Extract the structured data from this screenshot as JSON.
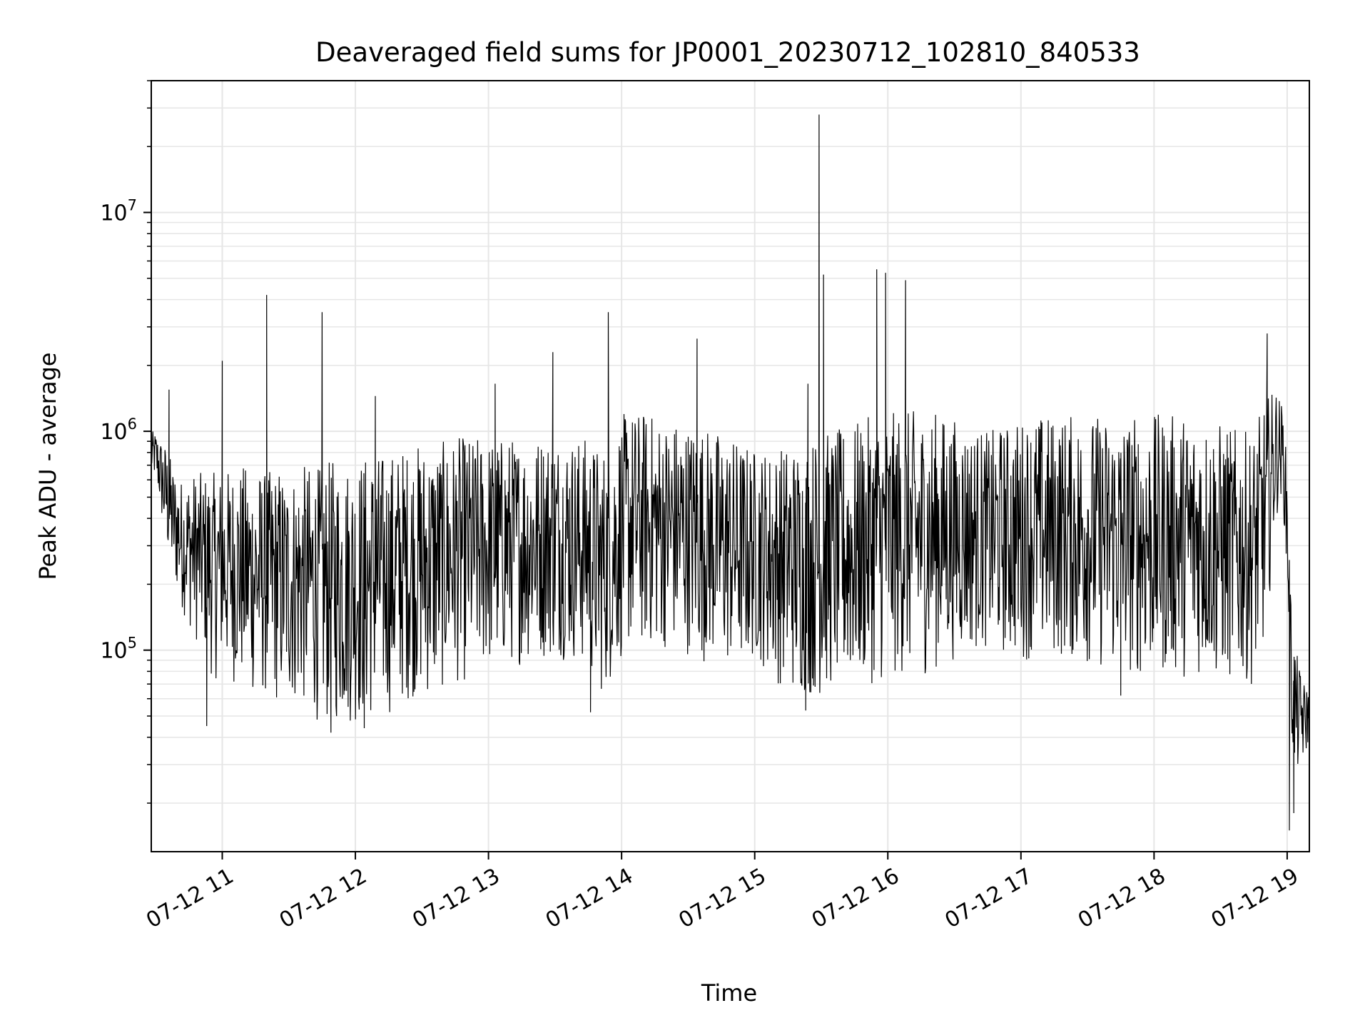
{
  "chart_data": {
    "type": "line",
    "title": "Deaveraged field sums for JP0001_20230712_102810_840533",
    "xlabel": "Time",
    "ylabel": "Peak ADU - average",
    "y_scale": "log",
    "grid": true,
    "x_range": [
      "2023-07-12 10:28",
      "2023-07-12 19:10"
    ],
    "ylim": [
      12000,
      40000000
    ],
    "x_ticks": [
      {
        "at": "2023-07-12 11:00",
        "label": "07-12 11"
      },
      {
        "at": "2023-07-12 12:00",
        "label": "07-12 12"
      },
      {
        "at": "2023-07-12 13:00",
        "label": "07-12 13"
      },
      {
        "at": "2023-07-12 14:00",
        "label": "07-12 14"
      },
      {
        "at": "2023-07-12 15:00",
        "label": "07-12 15"
      },
      {
        "at": "2023-07-12 16:00",
        "label": "07-12 16"
      },
      {
        "at": "2023-07-12 17:00",
        "label": "07-12 17"
      },
      {
        "at": "2023-07-12 18:00",
        "label": "07-12 18"
      },
      {
        "at": "2023-07-12 19:00",
        "label": "07-12 19"
      }
    ],
    "y_ticks": [
      {
        "value": 100000,
        "base": "10",
        "exp": "5"
      },
      {
        "value": 1000000,
        "base": "10",
        "exp": "6"
      },
      {
        "value": 10000000,
        "base": "10",
        "exp": "7"
      }
    ],
    "line_color": "#000000",
    "grid_color": "#e6e6e6",
    "series": [
      {
        "x": [
          "2023-07-12 10:28",
          "2023-07-12 10:30",
          "2023-07-12 10:34",
          "2023-07-12 10:38",
          "2023-07-12 10:42",
          "2023-07-12 10:46",
          "2023-07-12 10:50",
          "2023-07-12 10:53",
          "2023-07-12 10:56",
          "2023-07-12 11:00",
          "2023-07-12 11:05",
          "2023-07-12 11:10",
          "2023-07-12 11:15",
          "2023-07-12 11:20",
          "2023-07-12 11:25",
          "2023-07-12 11:30",
          "2023-07-12 11:35",
          "2023-07-12 11:40",
          "2023-07-12 11:45",
          "2023-07-12 11:50",
          "2023-07-12 11:55",
          "2023-07-12 12:00",
          "2023-07-12 12:05",
          "2023-07-12 12:10",
          "2023-07-12 12:15",
          "2023-07-12 12:20",
          "2023-07-12 12:25",
          "2023-07-12 12:30",
          "2023-07-12 12:35",
          "2023-07-12 12:40",
          "2023-07-12 12:45",
          "2023-07-12 12:50",
          "2023-07-12 12:55",
          "2023-07-12 13:00",
          "2023-07-12 13:05",
          "2023-07-12 13:10",
          "2023-07-12 13:15",
          "2023-07-12 13:20",
          "2023-07-12 13:25",
          "2023-07-12 13:30",
          "2023-07-12 13:35",
          "2023-07-12 13:40",
          "2023-07-12 13:45",
          "2023-07-12 13:50",
          "2023-07-12 13:55",
          "2023-07-12 14:00",
          "2023-07-12 14:05",
          "2023-07-12 14:10",
          "2023-07-12 14:15",
          "2023-07-12 14:20",
          "2023-07-12 14:25",
          "2023-07-12 14:30",
          "2023-07-12 14:35",
          "2023-07-12 14:40",
          "2023-07-12 14:45",
          "2023-07-12 14:50",
          "2023-07-12 14:55",
          "2023-07-12 15:00",
          "2023-07-12 15:05",
          "2023-07-12 15:10",
          "2023-07-12 15:15",
          "2023-07-12 15:20",
          "2023-07-12 15:25",
          "2023-07-12 15:30",
          "2023-07-12 15:35",
          "2023-07-12 15:40",
          "2023-07-12 15:45",
          "2023-07-12 15:50",
          "2023-07-12 15:55",
          "2023-07-12 16:00",
          "2023-07-12 16:05",
          "2023-07-12 16:10",
          "2023-07-12 16:15",
          "2023-07-12 16:20",
          "2023-07-12 16:25",
          "2023-07-12 16:30",
          "2023-07-12 16:35",
          "2023-07-12 16:40",
          "2023-07-12 16:45",
          "2023-07-12 16:50",
          "2023-07-12 16:55",
          "2023-07-12 17:00",
          "2023-07-12 17:05",
          "2023-07-12 17:10",
          "2023-07-12 17:15",
          "2023-07-12 17:20",
          "2023-07-12 17:25",
          "2023-07-12 17:30",
          "2023-07-12 17:35",
          "2023-07-12 17:40",
          "2023-07-12 17:45",
          "2023-07-12 17:50",
          "2023-07-12 17:55",
          "2023-07-12 18:00",
          "2023-07-12 18:05",
          "2023-07-12 18:10",
          "2023-07-12 18:15",
          "2023-07-12 18:20",
          "2023-07-12 18:25",
          "2023-07-12 18:30",
          "2023-07-12 18:35",
          "2023-07-12 18:40",
          "2023-07-12 18:45",
          "2023-07-12 18:50",
          "2023-07-12 18:55",
          "2023-07-12 18:58",
          "2023-07-12 19:00",
          "2023-07-12 19:02",
          "2023-07-12 19:04",
          "2023-07-12 19:06",
          "2023-07-12 19:08",
          "2023-07-12 19:10"
        ],
        "low": [
          600000,
          600000,
          300000,
          200000,
          150000,
          120000,
          100000,
          90000,
          70000,
          80000,
          70000,
          65000,
          60000,
          60000,
          55000,
          55000,
          55000,
          50000,
          45000,
          45000,
          45000,
          45000,
          45000,
          50000,
          50000,
          55000,
          60000,
          60000,
          60000,
          65000,
          70000,
          70000,
          75000,
          80000,
          80000,
          85000,
          85000,
          90000,
          90000,
          90000,
          90000,
          85000,
          80000,
          60000,
          70000,
          90000,
          100000,
          100000,
          100000,
          100000,
          95000,
          95000,
          90000,
          85000,
          80000,
          80000,
          80000,
          90000,
          80000,
          70000,
          65000,
          60000,
          60000,
          60000,
          65000,
          65000,
          65000,
          70000,
          70000,
          70000,
          75000,
          75000,
          75000,
          80000,
          85000,
          90000,
          95000,
          100000,
          100000,
          95000,
          90000,
          90000,
          90000,
          90000,
          90000,
          90000,
          85000,
          85000,
          80000,
          80000,
          80000,
          75000,
          75000,
          75000,
          75000,
          75000,
          75000,
          75000,
          75000,
          70000,
          70000,
          70000,
          70000,
          100000,
          400000,
          500000,
          200000,
          35000,
          25000,
          30000,
          30000,
          40000
        ],
        "high": [
          1000000,
          1000000,
          900000,
          700000,
          600000,
          650000,
          650000,
          650000,
          650000,
          650000,
          700000,
          700000,
          700000,
          650000,
          700000,
          650000,
          700000,
          700000,
          700000,
          750000,
          750000,
          750000,
          800000,
          800000,
          800000,
          850000,
          850000,
          900000,
          900000,
          900000,
          950000,
          950000,
          950000,
          950000,
          950000,
          950000,
          950000,
          950000,
          1000000,
          1000000,
          1000000,
          950000,
          950000,
          850000,
          900000,
          1200000,
          1250000,
          1250000,
          1200000,
          1150000,
          1150000,
          1100000,
          1100000,
          1050000,
          1000000,
          950000,
          900000,
          850000,
          850000,
          850000,
          900000,
          900000,
          950000,
          1000000,
          1000000,
          1050000,
          1100000,
          1150000,
          1200000,
          1200000,
          1250000,
          1250000,
          1250000,
          1250000,
          1200000,
          1150000,
          1100000,
          1050000,
          1000000,
          1050000,
          1100000,
          1150000,
          1200000,
          1200000,
          1200000,
          1200000,
          1200000,
          1200000,
          1200000,
          1200000,
          1200000,
          1200000,
          1200000,
          1200000,
          1200000,
          1200000,
          1200000,
          1200000,
          1150000,
          1100000,
          1050000,
          1000000,
          1000000,
          1400000,
          1600000,
          1300000,
          700000,
          140000,
          100000,
          80000,
          70000,
          70000
        ],
        "spikes": [
          {
            "x": "2023-07-12 10:36",
            "y": 1550000
          },
          {
            "x": "2023-07-12 11:00",
            "y": 2100000
          },
          {
            "x": "2023-07-12 11:20",
            "y": 4200000
          },
          {
            "x": "2023-07-12 11:45",
            "y": 3500000
          },
          {
            "x": "2023-07-12 12:09",
            "y": 1450000
          },
          {
            "x": "2023-07-12 13:03",
            "y": 1650000
          },
          {
            "x": "2023-07-12 13:29",
            "y": 2300000
          },
          {
            "x": "2023-07-12 13:54",
            "y": 3500000
          },
          {
            "x": "2023-07-12 14:34",
            "y": 2650000
          },
          {
            "x": "2023-07-12 15:24",
            "y": 1650000
          },
          {
            "x": "2023-07-12 15:29",
            "y": 28000000
          },
          {
            "x": "2023-07-12 15:31",
            "y": 5200000
          },
          {
            "x": "2023-07-12 15:55",
            "y": 5500000
          },
          {
            "x": "2023-07-12 15:59",
            "y": 5300000
          },
          {
            "x": "2023-07-12 16:08",
            "y": 4900000
          },
          {
            "x": "2023-07-12 18:51",
            "y": 2800000
          },
          {
            "x": "2023-07-12 10:53",
            "y": 45000
          },
          {
            "x": "2023-07-12 11:49",
            "y": 42000
          },
          {
            "x": "2023-07-12 12:04",
            "y": 44000
          },
          {
            "x": "2023-07-12 13:46",
            "y": 52000
          },
          {
            "x": "2023-07-12 15:23",
            "y": 53000
          },
          {
            "x": "2023-07-12 17:45",
            "y": 62000
          },
          {
            "x": "2023-07-12 19:01",
            "y": 15000
          },
          {
            "x": "2023-07-12 19:03",
            "y": 18000
          }
        ]
      }
    ]
  }
}
